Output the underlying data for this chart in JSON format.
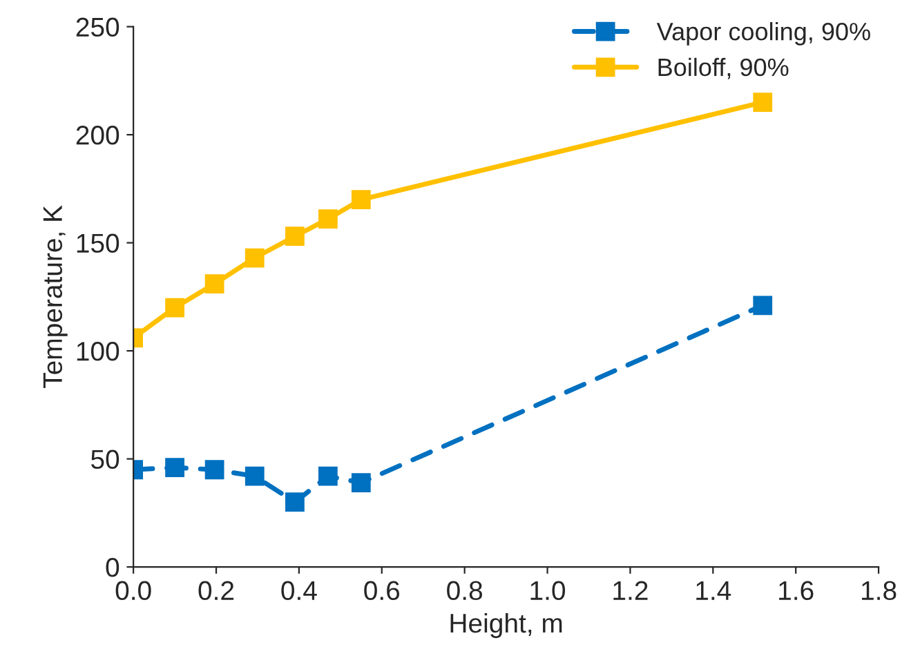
{
  "chart_data": {
    "type": "line",
    "xlabel": "Height, m",
    "ylabel": "Temperature, K",
    "xlim": [
      0,
      1.8
    ],
    "xticks": [
      {
        "value": 0,
        "label": "0.0"
      },
      {
        "value": 0.2,
        "label": "0.2"
      },
      {
        "value": 0.4,
        "label": "0.4"
      },
      {
        "value": 0.6,
        "label": "0.6"
      },
      {
        "value": 0.8,
        "label": "0.8"
      },
      {
        "value": 1.0,
        "label": "1.0"
      },
      {
        "value": 1.2,
        "label": "1.2"
      },
      {
        "value": 1.4,
        "label": "1.4"
      },
      {
        "value": 1.6,
        "label": "1.6"
      },
      {
        "value": 1.8,
        "label": "1.8"
      }
    ],
    "ylim": [
      0,
      250
    ],
    "yticks": [
      0,
      50,
      100,
      150,
      200,
      250
    ],
    "x": [
      0,
      0.1,
      0.196,
      0.293,
      0.39,
      0.47,
      0.55,
      1.52
    ],
    "series": [
      {
        "name": "Vapor cooling, 90%",
        "color": "#0070c0",
        "line_style": "dashed",
        "values": [
          45,
          46,
          45,
          42,
          30,
          42,
          39,
          121
        ]
      },
      {
        "name": "Boiloff, 90%",
        "color": "#ffc000",
        "line_style": "solid",
        "values": [
          106,
          120,
          131,
          143,
          153,
          161,
          170,
          215
        ]
      }
    ],
    "marker": "square",
    "grid": false,
    "legend": "top right"
  }
}
